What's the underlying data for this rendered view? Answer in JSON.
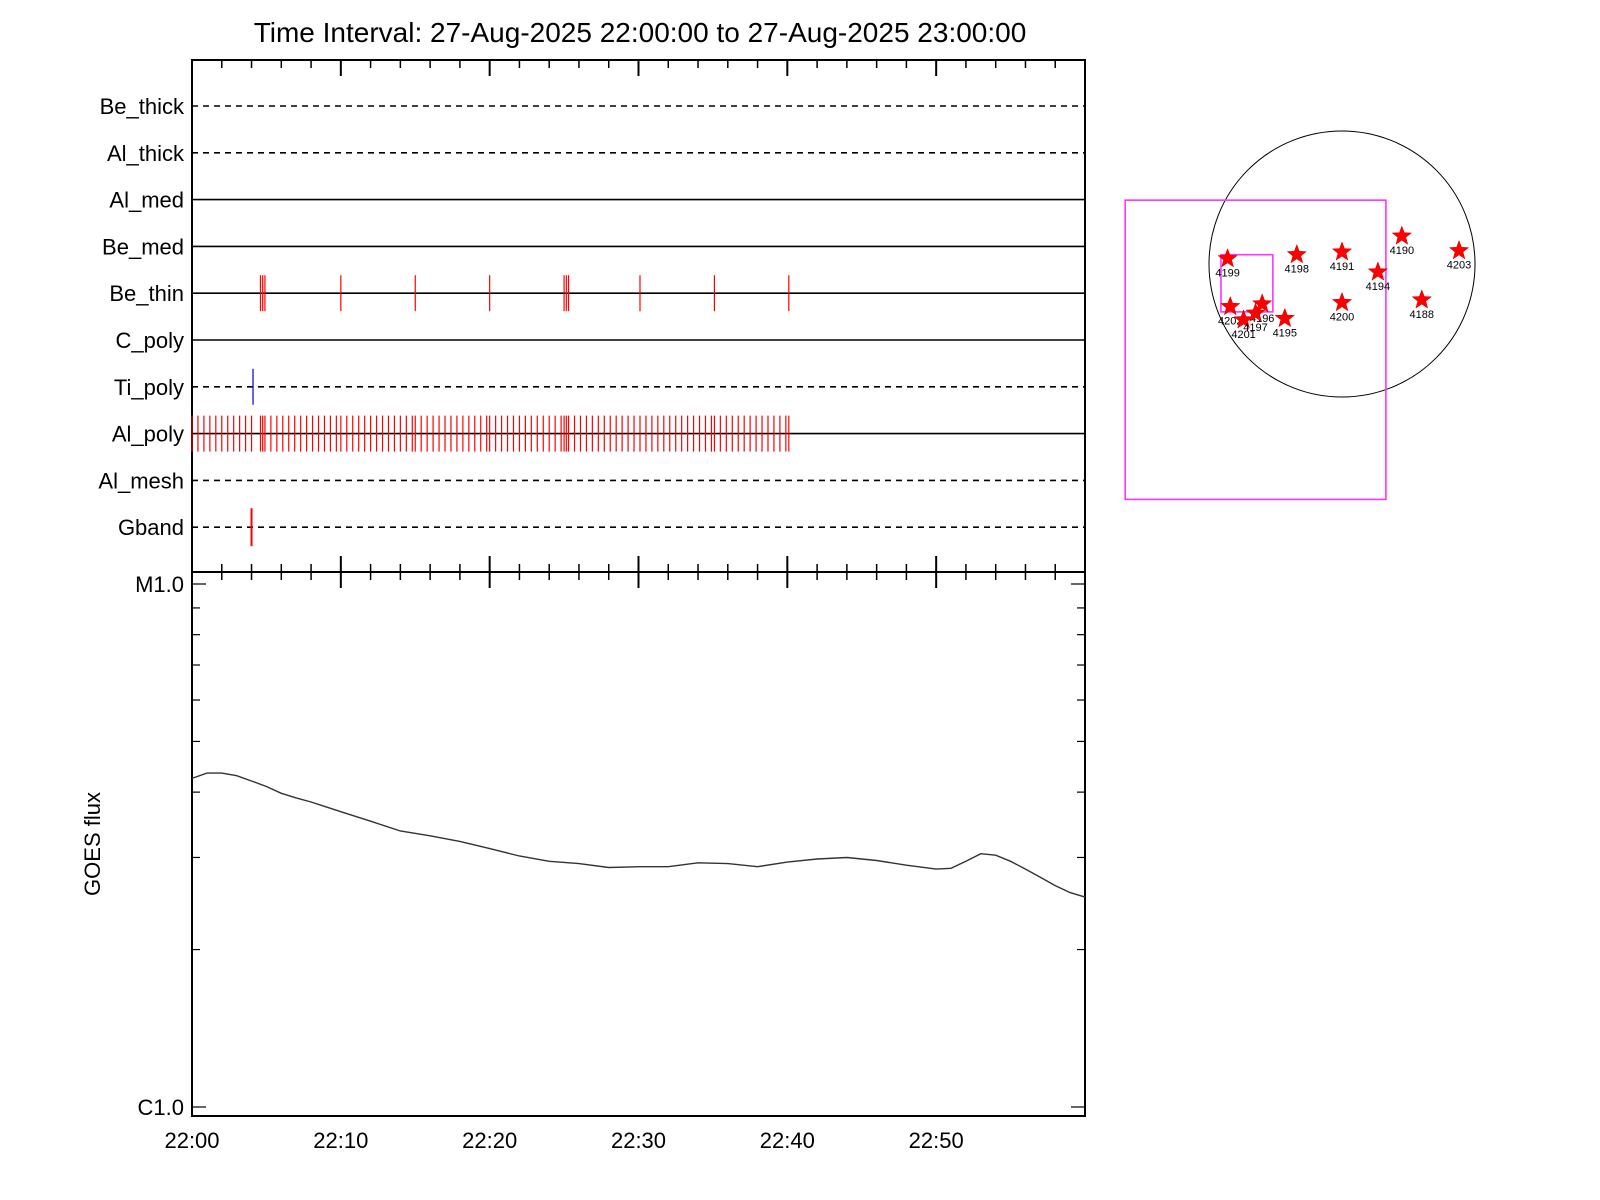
{
  "title": "Time Interval: 27-Aug-2025 22:00:00 to 27-Aug-2025 23:00:00",
  "colors": {
    "axis": "#000000",
    "red_marks": "#ff0000",
    "blue_marks": "#0000cc",
    "goes_line": "#333333",
    "fov_box": "#ff33ff"
  },
  "chart_data": [
    {
      "type": "timeline",
      "name": "XRT filter usage",
      "x_range_minutes": [
        0,
        60
      ],
      "rows": [
        {
          "filter": "Be_thick",
          "style": "dashed",
          "color": "#ff0000",
          "events_min": []
        },
        {
          "filter": "Al_thick",
          "style": "dashed",
          "color": "#ff0000",
          "events_min": []
        },
        {
          "filter": "Al_med",
          "style": "solid",
          "color": "#ff0000",
          "events_min": []
        },
        {
          "filter": "Be_med",
          "style": "solid",
          "color": "#ff0000",
          "events_min": []
        },
        {
          "filter": "Be_thin",
          "style": "solid",
          "color": "#ff0000",
          "events_min": [
            4.6,
            4.75,
            4.9,
            10.0,
            15.0,
            20.0,
            25.0,
            25.15,
            25.3,
            30.1,
            35.1,
            40.1
          ]
        },
        {
          "filter": "C_poly",
          "style": "solid",
          "color": "#ff0000",
          "events_min": []
        },
        {
          "filter": "Ti_poly",
          "style": "dashed",
          "color": "#0000cc",
          "events_min": [
            4.1
          ]
        },
        {
          "filter": "Al_poly",
          "style": "solid",
          "color": "#ff0000",
          "events_min": [
            0.0,
            0.4,
            0.8,
            1.2,
            1.6,
            2.0,
            2.4,
            2.8,
            3.2,
            3.6,
            4.0,
            4.6,
            4.75,
            4.9,
            5.3,
            5.7,
            6.1,
            6.5,
            6.9,
            7.3,
            7.7,
            8.1,
            8.5,
            8.9,
            9.3,
            9.7,
            10.0,
            10.4,
            10.8,
            11.2,
            11.6,
            12.0,
            12.4,
            12.8,
            13.2,
            13.6,
            14.0,
            14.4,
            14.8,
            15.0,
            15.4,
            15.8,
            16.2,
            16.6,
            17.0,
            17.4,
            17.8,
            18.2,
            18.6,
            19.0,
            19.4,
            19.8,
            20.0,
            20.4,
            20.8,
            21.2,
            21.6,
            22.0,
            22.4,
            22.8,
            23.2,
            23.6,
            24.0,
            24.4,
            24.8,
            25.0,
            25.15,
            25.3,
            25.7,
            26.1,
            26.5,
            26.9,
            27.3,
            27.7,
            28.1,
            28.5,
            28.9,
            29.3,
            29.7,
            30.1,
            30.5,
            30.9,
            31.3,
            31.7,
            32.1,
            32.5,
            32.9,
            33.3,
            33.7,
            34.1,
            34.5,
            34.9,
            35.1,
            35.5,
            35.9,
            36.3,
            36.7,
            37.1,
            37.5,
            37.9,
            38.3,
            38.7,
            39.1,
            39.5,
            39.9,
            40.1
          ]
        },
        {
          "filter": "Al_mesh",
          "style": "dashed",
          "color": "#ff0000",
          "events_min": []
        },
        {
          "filter": "Gband",
          "style": "dashed",
          "color": "#ff0000",
          "events_min": [
            4.0
          ]
        }
      ]
    },
    {
      "type": "line",
      "name": "GOES flux",
      "ylabel": "GOES flux",
      "y_scale": "log",
      "ylim": [
        1e-06,
        1e-05
      ],
      "y_tick_labels": [
        "C1.0",
        "M1.0"
      ],
      "x_tick_labels": [
        "22:00",
        "22:10",
        "22:20",
        "22:30",
        "22:40",
        "22:50"
      ],
      "x_range_minutes": [
        0,
        60
      ],
      "x": [
        0,
        1,
        2,
        3,
        4,
        5,
        6,
        7,
        8,
        9,
        10,
        12,
        14,
        16,
        18,
        20,
        22,
        24,
        26,
        28,
        30,
        32,
        34,
        36,
        38,
        40,
        42,
        44,
        46,
        48,
        50,
        51,
        52,
        53,
        54,
        55,
        56,
        57,
        58,
        59,
        60
      ],
      "y": [
        4.25e-06,
        4.35e-06,
        4.35e-06,
        4.3e-06,
        4.2e-06,
        4.1e-06,
        3.98e-06,
        3.9e-06,
        3.83e-06,
        3.75e-06,
        3.67e-06,
        3.52e-06,
        3.37e-06,
        3.3e-06,
        3.22e-06,
        3.12e-06,
        3.02e-06,
        2.95e-06,
        2.92e-06,
        2.87e-06,
        2.88e-06,
        2.88e-06,
        2.93e-06,
        2.92e-06,
        2.88e-06,
        2.94e-06,
        2.98e-06,
        3e-06,
        2.96e-06,
        2.9e-06,
        2.85e-06,
        2.86e-06,
        2.95e-06,
        3.05e-06,
        3.03e-06,
        2.95e-06,
        2.85e-06,
        2.75e-06,
        2.65e-06,
        2.57e-06,
        2.52e-06
      ]
    },
    {
      "type": "scatter",
      "name": "Active regions on solar disk",
      "x_range_arcsec": [
        -1000,
        1000
      ],
      "y_range_arcsec": [
        -1000,
        1000
      ],
      "regions": [
        {
          "label": "4199",
          "x": -860,
          "y": 40
        },
        {
          "label": "4198",
          "x": -340,
          "y": 70
        },
        {
          "label": "4191",
          "x": 0,
          "y": 90
        },
        {
          "label": "4190",
          "x": 450,
          "y": 210
        },
        {
          "label": "4203",
          "x": 880,
          "y": 100
        },
        {
          "label": "4194",
          "x": 270,
          "y": -60
        },
        {
          "label": "4200",
          "x": 0,
          "y": -290
        },
        {
          "label": "4188",
          "x": 600,
          "y": -270
        },
        {
          "label": "4202",
          "x": -840,
          "y": -320
        },
        {
          "label": "4201",
          "x": -740,
          "y": -420
        },
        {
          "label": "4196",
          "x": -600,
          "y": -300
        },
        {
          "label": "4197",
          "x": -650,
          "y": -370
        },
        {
          "label": "4195",
          "x": -430,
          "y": -410
        }
      ],
      "fov_boxes": [
        {
          "name": "large",
          "x0": -1630,
          "y0": -1770,
          "x1": 330,
          "y1": 480
        },
        {
          "name": "small",
          "x0": -910,
          "y0": -360,
          "x1": -520,
          "y1": 70
        }
      ]
    }
  ]
}
